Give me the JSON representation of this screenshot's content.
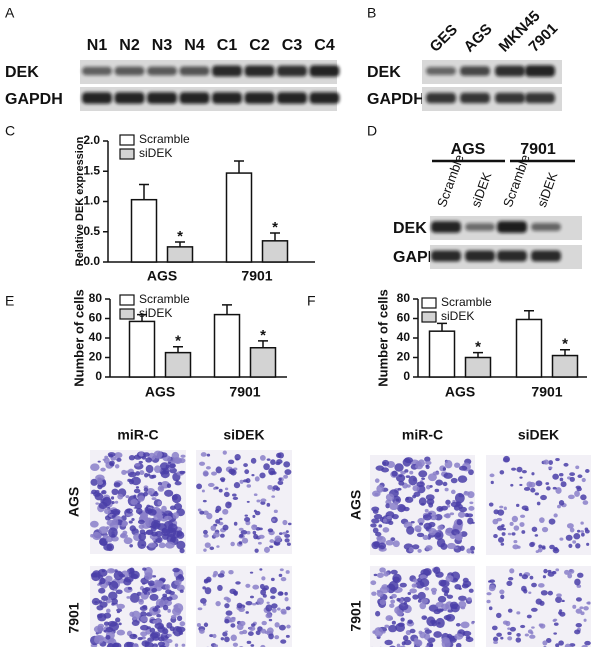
{
  "blot_a": {
    "label": "A",
    "lanes": [
      "N1",
      "N2",
      "N3",
      "N4",
      "C1",
      "C2",
      "C3",
      "C4"
    ],
    "rows": [
      "DEK",
      "GAPDH"
    ]
  },
  "blot_b": {
    "label": "B",
    "lanes": [
      "GES",
      "AGS",
      "MKN45",
      "7901"
    ],
    "rows": [
      "DEK",
      "GAPDH"
    ]
  },
  "blot_d": {
    "label": "D",
    "groups": [
      "AGS",
      "7901"
    ],
    "lanes": [
      "Scramble",
      "siDEK",
      "Scramble",
      "siDEK"
    ],
    "rows": [
      "DEK",
      "GAPDH"
    ]
  },
  "micro_e": {
    "columns": [
      "miR-C",
      "siDEK"
    ],
    "rows": [
      "AGS",
      "7901"
    ]
  },
  "micro_f": {
    "columns": [
      "miR-C",
      "siDEK"
    ],
    "rows": [
      "AGS",
      "7901"
    ]
  },
  "chart_data": [
    {
      "type": "bar",
      "label": "C",
      "ylabel": "Relative DEK expression",
      "categories": [
        "AGS",
        "7901"
      ],
      "series": [
        {
          "name": "Scramble",
          "color": "#ffffff",
          "values": [
            1.03,
            1.47
          ],
          "errors": [
            0.25,
            0.2
          ]
        },
        {
          "name": "siDEK",
          "color": "#d3d3d3",
          "values": [
            0.25,
            0.35
          ],
          "errors": [
            0.08,
            0.13
          ],
          "significance": [
            "*",
            "*"
          ]
        }
      ],
      "ylim": [
        0,
        2
      ],
      "yticks": [
        {
          "value": 0,
          "label": "0.0"
        },
        0.5,
        {
          "value": 1,
          "label": "1.0"
        },
        1.5,
        {
          "value": 2,
          "label": "2.0"
        }
      ]
    },
    {
      "type": "bar",
      "label": "E",
      "ylabel": "Number of cells",
      "categories": [
        "AGS",
        "7901"
      ],
      "series": [
        {
          "name": "Scramble",
          "color": "#ffffff",
          "values": [
            57,
            64
          ],
          "errors": [
            7,
            10
          ]
        },
        {
          "name": "siDEK",
          "color": "#d3d3d3",
          "values": [
            25,
            30
          ],
          "errors": [
            6,
            7
          ],
          "significance": [
            "*",
            "*"
          ]
        }
      ],
      "ylim": [
        0,
        80
      ],
      "yticks": [
        0,
        20,
        40,
        60,
        80
      ]
    },
    {
      "type": "bar",
      "label": "F",
      "ylabel": "Number of cells",
      "categories": [
        "AGS",
        "7901"
      ],
      "series": [
        {
          "name": "Scramble",
          "color": "#ffffff",
          "values": [
            47,
            59
          ],
          "errors": [
            8,
            9
          ]
        },
        {
          "name": "siDEK",
          "color": "#d3d3d3",
          "values": [
            20,
            22
          ],
          "errors": [
            5,
            6
          ],
          "significance": [
            "*",
            "*"
          ]
        }
      ],
      "ylim": [
        0,
        80
      ],
      "yticks": [
        0,
        20,
        40,
        60,
        80
      ]
    }
  ]
}
